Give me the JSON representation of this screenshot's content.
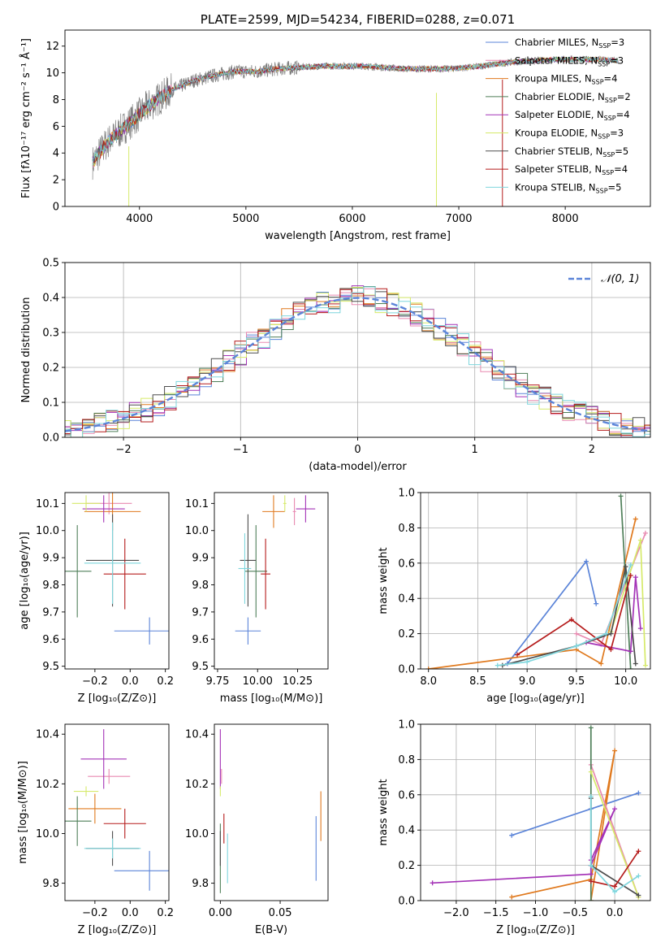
{
  "colors": {
    "chabrier_miles": "#5b84d8",
    "salpeter_miles": "#e889b0",
    "kroupa_miles": "#e07a1f",
    "chabrier_elodie": "#4f7f59",
    "salpeter_elodie": "#a433b7",
    "kroupa_elodie": "#d6ea6a",
    "chabrier_stelib": "#4d4d4d",
    "salpeter_stelib": "#b51b1b",
    "kroupa_stelib": "#7fd6dd",
    "data": "#808080",
    "grid": "#b0b0b0"
  },
  "chart_data": [
    {
      "id": "spectrum",
      "type": "line",
      "title": "PLATE=2599, MJD=54234, FIBERID=0288, z=0.071",
      "xlabel": "wavelength [Angstrom, rest frame]",
      "ylabel": "Flux [fλ10⁻¹⁷ erg cm⁻² s⁻¹ Å⁻¹]",
      "xlim": [
        3300,
        8800
      ],
      "ylim": [
        0,
        13.2
      ],
      "xticks": [
        "4000",
        "5000",
        "6000",
        "7000",
        "8000"
      ],
      "yticks": [
        "0",
        "2",
        "4",
        "6",
        "8",
        "10",
        "12"
      ],
      "grid": false,
      "legend_position": "right",
      "legend": [
        {
          "key": "chabrier_miles",
          "label": "Chabrier MILES, N",
          "sub": "SSP",
          "suffix": "=3"
        },
        {
          "key": "salpeter_miles",
          "label": "Salpeter MILES, N",
          "sub": "SSP",
          "suffix": "=3"
        },
        {
          "key": "kroupa_miles",
          "label": "Kroupa MILES, N",
          "sub": "SSP",
          "suffix": "=4"
        },
        {
          "key": "chabrier_elodie",
          "label": "Chabrier ELODIE, N",
          "sub": "SSP",
          "suffix": "=2"
        },
        {
          "key": "salpeter_elodie",
          "label": "Salpeter ELODIE, N",
          "sub": "SSP",
          "suffix": "=4"
        },
        {
          "key": "kroupa_elodie",
          "label": "Kroupa ELODIE, N",
          "sub": "SSP",
          "suffix": "=3"
        },
        {
          "key": "chabrier_stelib",
          "label": "Chabrier STELIB, N",
          "sub": "SSP",
          "suffix": "=5"
        },
        {
          "key": "salpeter_stelib",
          "label": "Salpeter STELIB, N",
          "sub": "SSP",
          "suffix": "=4"
        },
        {
          "key": "kroupa_stelib",
          "label": "Kroupa STELIB, N",
          "sub": "SSP",
          "suffix": "=5"
        }
      ],
      "continuum": {
        "x": [
          3560,
          3700,
          3900,
          4100,
          4300,
          4500,
          4700,
          4900,
          5100,
          5300,
          5500,
          5700,
          5900,
          6100,
          6300,
          6500,
          6700,
          6900,
          7100,
          7300,
          7500,
          7700,
          7900,
          8100,
          8300,
          8500
        ],
        "y": [
          3.3,
          4.8,
          6.2,
          7.6,
          8.7,
          9.4,
          9.8,
          10.1,
          10.1,
          10.3,
          10.4,
          10.5,
          10.5,
          10.5,
          10.4,
          10.3,
          10.3,
          10.3,
          10.4,
          10.6,
          10.8,
          10.9,
          11.0,
          11.0,
          11.0,
          10.9
        ]
      }
    },
    {
      "id": "residuals",
      "type": "histogram",
      "xlabel": "(data-model)/error",
      "ylabel": "Normed distribution",
      "xlim": [
        -2.5,
        2.5
      ],
      "ylim": [
        0,
        0.5
      ],
      "xticks": [
        "−2",
        "−1",
        "0",
        "1",
        "2"
      ],
      "yticks": [
        "0.0",
        "0.1",
        "0.2",
        "0.3",
        "0.4",
        "0.5"
      ],
      "grid": true,
      "legend": "𝒩(0, 1)",
      "legend_position": "upper right",
      "gaussian": {
        "mean": 0,
        "sigma": 1
      }
    },
    {
      "id": "age_vs_z",
      "type": "errorbar",
      "xlabel": "Z [log₁₀(Z/Z⊙)]",
      "ylabel": "age  [log₁₀(age/yr)]",
      "xlim": [
        -0.37,
        0.22
      ],
      "ylim": [
        9.49,
        10.14
      ],
      "xticks": [
        "−0.2",
        "0.0",
        "0.2"
      ],
      "yticks": [
        "9.5",
        "9.6",
        "9.7",
        "9.8",
        "9.9",
        "10.0",
        "10.1"
      ],
      "points": [
        {
          "key": "chabrier_miles",
          "x": 0.11,
          "xerr": 0.2,
          "y": 9.63,
          "yerr": 0.05
        },
        {
          "key": "salpeter_miles",
          "x": -0.12,
          "xerr": 0.13,
          "y": 10.1,
          "yerr": 0.04
        },
        {
          "key": "kroupa_miles",
          "x": -0.1,
          "xerr": 0.16,
          "y": 10.07,
          "yerr": 0.07
        },
        {
          "key": "chabrier_elodie",
          "x": -0.3,
          "xerr": 0.08,
          "y": 9.85,
          "yerr": 0.17
        },
        {
          "key": "salpeter_elodie",
          "x": -0.15,
          "xerr": 0.12,
          "y": 10.08,
          "yerr": 0.05
        },
        {
          "key": "kroupa_elodie",
          "x": -0.25,
          "xerr": 0.08,
          "y": 10.1,
          "yerr": 0.03
        },
        {
          "key": "chabrier_stelib",
          "x": -0.1,
          "xerr": 0.15,
          "y": 9.89,
          "yerr": 0.17
        },
        {
          "key": "salpeter_stelib",
          "x": -0.03,
          "xerr": 0.12,
          "y": 9.84,
          "yerr": 0.13
        },
        {
          "key": "kroupa_stelib",
          "x": -0.1,
          "xerr": 0.16,
          "y": 9.88,
          "yerr": 0.15
        }
      ]
    },
    {
      "id": "age_vs_mass",
      "type": "errorbar",
      "xlabel": "mass [log₁₀(M/M⊙)]",
      "ylabel": "",
      "xlim": [
        9.73,
        10.44
      ],
      "ylim": [
        9.49,
        10.14
      ],
      "xticks": [
        "9.75",
        "10.00",
        "10.25"
      ],
      "yticks": [
        "9.5",
        "9.6",
        "9.7",
        "9.8",
        "9.9",
        "10.0",
        "10.1"
      ],
      "points": [
        {
          "key": "chabrier_miles",
          "x": 9.94,
          "xerr": 0.08,
          "y": 9.63,
          "yerr": 0.05
        },
        {
          "key": "salpeter_miles",
          "x": 10.23,
          "xerr": 0.01,
          "y": 10.07,
          "yerr": 0.05
        },
        {
          "key": "kroupa_miles",
          "x": 10.1,
          "xerr": 0.07,
          "y": 10.07,
          "yerr": 0.06
        },
        {
          "key": "chabrier_elodie",
          "x": 9.99,
          "xerr": 0.07,
          "y": 9.85,
          "yerr": 0.17
        },
        {
          "key": "salpeter_elodie",
          "x": 10.3,
          "xerr": 0.06,
          "y": 10.08,
          "yerr": 0.05
        },
        {
          "key": "kroupa_elodie",
          "x": 10.17,
          "xerr": 0.01,
          "y": 10.1,
          "yerr": 0.03
        },
        {
          "key": "chabrier_stelib",
          "x": 9.94,
          "xerr": 0.05,
          "y": 9.89,
          "yerr": 0.17
        },
        {
          "key": "salpeter_stelib",
          "x": 10.05,
          "xerr": 0.03,
          "y": 9.84,
          "yerr": 0.13
        },
        {
          "key": "kroupa_stelib",
          "x": 9.92,
          "xerr": 0.04,
          "y": 9.86,
          "yerr": 0.13
        }
      ]
    },
    {
      "id": "weight_vs_age",
      "type": "line",
      "xlabel": "age  [log₁₀(age/yr)]",
      "ylabel": "mass weight",
      "xlim": [
        7.92,
        10.25
      ],
      "ylim": [
        0,
        1.0
      ],
      "xticks": [
        "8.0",
        "8.5",
        "9.0",
        "9.5",
        "10.0"
      ],
      "yticks": [
        "0.0",
        "0.2",
        "0.4",
        "0.6",
        "0.8",
        "1.0"
      ],
      "grid": true,
      "series": [
        {
          "key": "chabrier_miles",
          "x": [
            8.8,
            9.6,
            9.7
          ],
          "y": [
            0.03,
            0.61,
            0.37
          ]
        },
        {
          "key": "kroupa_miles",
          "x": [
            8.0,
            9.5,
            9.75,
            10.1
          ],
          "y": [
            0.0,
            0.11,
            0.03,
            0.85
          ]
        },
        {
          "key": "salpeter_miles",
          "x": [
            9.5,
            9.75,
            10.2
          ],
          "y": [
            0.2,
            0.14,
            0.77
          ]
        },
        {
          "key": "chabrier_elodie",
          "x": [
            10.05,
            9.95
          ],
          "y": [
            0.0,
            0.98
          ]
        },
        {
          "key": "salpeter_elodie",
          "x": [
            9.6,
            10.05,
            10.1,
            10.15
          ],
          "y": [
            0.15,
            0.1,
            0.52,
            0.23
          ]
        },
        {
          "key": "kroupa_elodie",
          "x": [
            9.85,
            10.15,
            10.2
          ],
          "y": [
            0.21,
            0.73,
            0.02
          ]
        },
        {
          "key": "chabrier_stelib",
          "x": [
            8.75,
            9.5,
            9.85,
            10.0,
            10.1
          ],
          "y": [
            0.02,
            0.13,
            0.2,
            0.58,
            0.03
          ]
        },
        {
          "key": "salpeter_stelib",
          "x": [
            8.9,
            9.45,
            9.85,
            10.05
          ],
          "y": [
            0.08,
            0.28,
            0.11,
            0.53
          ]
        },
        {
          "key": "kroupa_stelib",
          "x": [
            8.7,
            9.0,
            9.5,
            9.8,
            10.05
          ],
          "y": [
            0.02,
            0.04,
            0.13,
            0.2,
            0.59
          ]
        }
      ]
    },
    {
      "id": "mass_vs_z",
      "type": "errorbar",
      "xlabel": "Z [log₁₀(Z/Z⊙)]",
      "ylabel": "mass [log₁₀(M/M⊙)]",
      "xlim": [
        -0.37,
        0.22
      ],
      "ylim": [
        9.73,
        10.44
      ],
      "xticks": [
        "−0.2",
        "0.0",
        "0.2"
      ],
      "yticks": [
        "9.8",
        "10.0",
        "10.2",
        "10.4"
      ],
      "points": [
        {
          "key": "chabrier_miles",
          "x": 0.11,
          "xerr": 0.2,
          "y": 9.85,
          "yerr": 0.08
        },
        {
          "key": "salpeter_miles",
          "x": -0.12,
          "xerr": 0.12,
          "y": 10.23,
          "yerr": 0.03
        },
        {
          "key": "kroupa_miles",
          "x": -0.2,
          "xerr": 0.15,
          "y": 10.1,
          "yerr": 0.06
        },
        {
          "key": "chabrier_elodie",
          "x": -0.3,
          "xerr": 0.08,
          "y": 10.05,
          "yerr": 0.1
        },
        {
          "key": "salpeter_elodie",
          "x": -0.15,
          "xerr": 0.13,
          "y": 10.3,
          "yerr": 0.12
        },
        {
          "key": "kroupa_elodie",
          "x": -0.25,
          "xerr": 0.07,
          "y": 10.17,
          "yerr": 0.02
        },
        {
          "key": "chabrier_stelib",
          "x": -0.1,
          "xerr": 0.15,
          "y": 9.94,
          "yerr": 0.07
        },
        {
          "key": "salpeter_stelib",
          "x": -0.03,
          "xerr": 0.12,
          "y": 10.04,
          "yerr": 0.06
        },
        {
          "key": "kroupa_stelib",
          "x": -0.1,
          "xerr": 0.16,
          "y": 9.94,
          "yerr": 0.04
        }
      ]
    },
    {
      "id": "mass_vs_ebv",
      "type": "errorbar",
      "xlabel": "E(B-V)",
      "ylabel": "",
      "xlim": [
        -0.005,
        0.09
      ],
      "ylim": [
        9.73,
        10.44
      ],
      "xticks": [
        "0.00",
        "0.05"
      ],
      "yticks": [
        "9.8",
        "10.0",
        "10.2",
        "10.4"
      ],
      "points": [
        {
          "key": "chabrier_miles",
          "x": 0.08,
          "xerr": 0,
          "y": 9.94,
          "yerr": 0.13
        },
        {
          "key": "salpeter_miles",
          "x": 0.001,
          "xerr": 0,
          "y": 10.23,
          "yerr": 0.03
        },
        {
          "key": "kroupa_miles",
          "x": 0.084,
          "xerr": 0,
          "y": 10.07,
          "yerr": 0.1
        },
        {
          "key": "chabrier_elodie",
          "x": 0.0,
          "xerr": 0,
          "y": 9.9,
          "yerr": 0.14
        },
        {
          "key": "salpeter_elodie",
          "x": 0.0,
          "xerr": 0,
          "y": 10.3,
          "yerr": 0.12
        },
        {
          "key": "kroupa_elodie",
          "x": 0.0,
          "xerr": 0,
          "y": 10.17,
          "yerr": 0.02
        },
        {
          "key": "chabrier_stelib",
          "x": 0.0,
          "xerr": 0,
          "y": 9.94,
          "yerr": 0.07
        },
        {
          "key": "salpeter_stelib",
          "x": 0.003,
          "xerr": 0,
          "y": 10.02,
          "yerr": 0.06
        },
        {
          "key": "kroupa_stelib",
          "x": 0.006,
          "xerr": 0,
          "y": 9.9,
          "yerr": 0.1
        }
      ]
    },
    {
      "id": "weight_vs_z",
      "type": "line",
      "xlabel": "Z [log₁₀(Z/Z⊙)]",
      "ylabel": "mass weight",
      "xlim": [
        -2.45,
        0.45
      ],
      "ylim": [
        0,
        1.0
      ],
      "xticks": [
        "−2.0",
        "−1.5",
        "−1.0",
        "−0.5",
        "0.0"
      ],
      "yticks": [
        "0.0",
        "0.2",
        "0.4",
        "0.6",
        "0.8",
        "1.0"
      ],
      "grid": true,
      "series": [
        {
          "key": "chabrier_miles",
          "x": [
            -1.3,
            0.3,
            -0.3
          ],
          "y": [
            0.37,
            0.61,
            0.52
          ]
        },
        {
          "key": "kroupa_miles",
          "x": [
            -1.3,
            -0.3,
            0.0,
            -0.3
          ],
          "y": [
            0.02,
            0.12,
            0.85,
            0.0
          ]
        },
        {
          "key": "salpeter_miles",
          "x": [
            -0.3,
            0.3
          ],
          "y": [
            0.77,
            0.02
          ]
        },
        {
          "key": "chabrier_elodie",
          "x": [
            -0.3,
            -0.3
          ],
          "y": [
            0.0,
            0.98
          ]
        },
        {
          "key": "salpeter_elodie",
          "x": [
            -2.3,
            -0.3,
            -0.3,
            0.0,
            -0.3
          ],
          "y": [
            0.1,
            0.15,
            0.2,
            0.52,
            0.23
          ]
        },
        {
          "key": "kroupa_elodie",
          "x": [
            -0.3,
            0.3
          ],
          "y": [
            0.73,
            0.02
          ]
        },
        {
          "key": "chabrier_stelib",
          "x": [
            -0.3,
            -0.3,
            0.3
          ],
          "y": [
            0.58,
            0.2,
            0.03
          ]
        },
        {
          "key": "salpeter_stelib",
          "x": [
            -0.3,
            0.0,
            0.3
          ],
          "y": [
            0.11,
            0.08,
            0.28
          ]
        },
        {
          "key": "kroupa_stelib",
          "x": [
            -0.3,
            -0.3,
            0.0,
            0.3
          ],
          "y": [
            0.59,
            0.2,
            0.05,
            0.14
          ]
        }
      ]
    }
  ]
}
